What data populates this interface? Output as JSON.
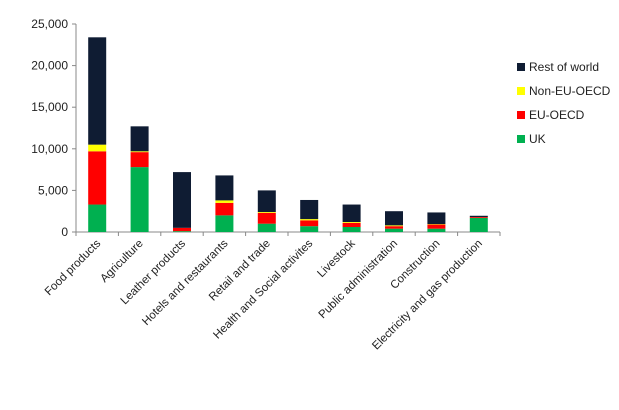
{
  "chart_data": {
    "type": "bar",
    "stacked": true,
    "categories": [
      "Food products",
      "Agriculture",
      "Leather products",
      "Hotels and restaurants",
      "Retail and trade",
      "Health and Social activites",
      "Livestock",
      "Public administration",
      "Construction",
      "Electricity and gas production"
    ],
    "series": [
      {
        "name": "UK",
        "color": "#00b050",
        "values": [
          3300,
          7800,
          100,
          2000,
          1000,
          700,
          600,
          400,
          400,
          1700
        ]
      },
      {
        "name": "EU-OECD",
        "color": "#ff0000",
        "values": [
          6400,
          1800,
          400,
          1500,
          1300,
          700,
          500,
          300,
          500,
          100
        ]
      },
      {
        "name": "Non-EU-OECD",
        "color": "#ffff00",
        "values": [
          800,
          100,
          0,
          300,
          100,
          150,
          100,
          100,
          50,
          0
        ]
      },
      {
        "name": "Rest of world",
        "color": "#0f1c33",
        "values": [
          12900,
          3000,
          6700,
          3000,
          2600,
          2300,
          2100,
          1700,
          1400,
          150
        ]
      }
    ],
    "ylim": [
      0,
      25000
    ],
    "yticks": [
      0,
      5000,
      10000,
      15000,
      20000,
      25000
    ],
    "ytick_labels": [
      "0",
      "5,000",
      "10,000",
      "15,000",
      "20,000",
      "25,000"
    ],
    "grid": false,
    "legend_placement": "right",
    "legend_order": [
      "Rest of world",
      "Non-EU-OECD",
      "EU-OECD",
      "UK"
    ]
  }
}
